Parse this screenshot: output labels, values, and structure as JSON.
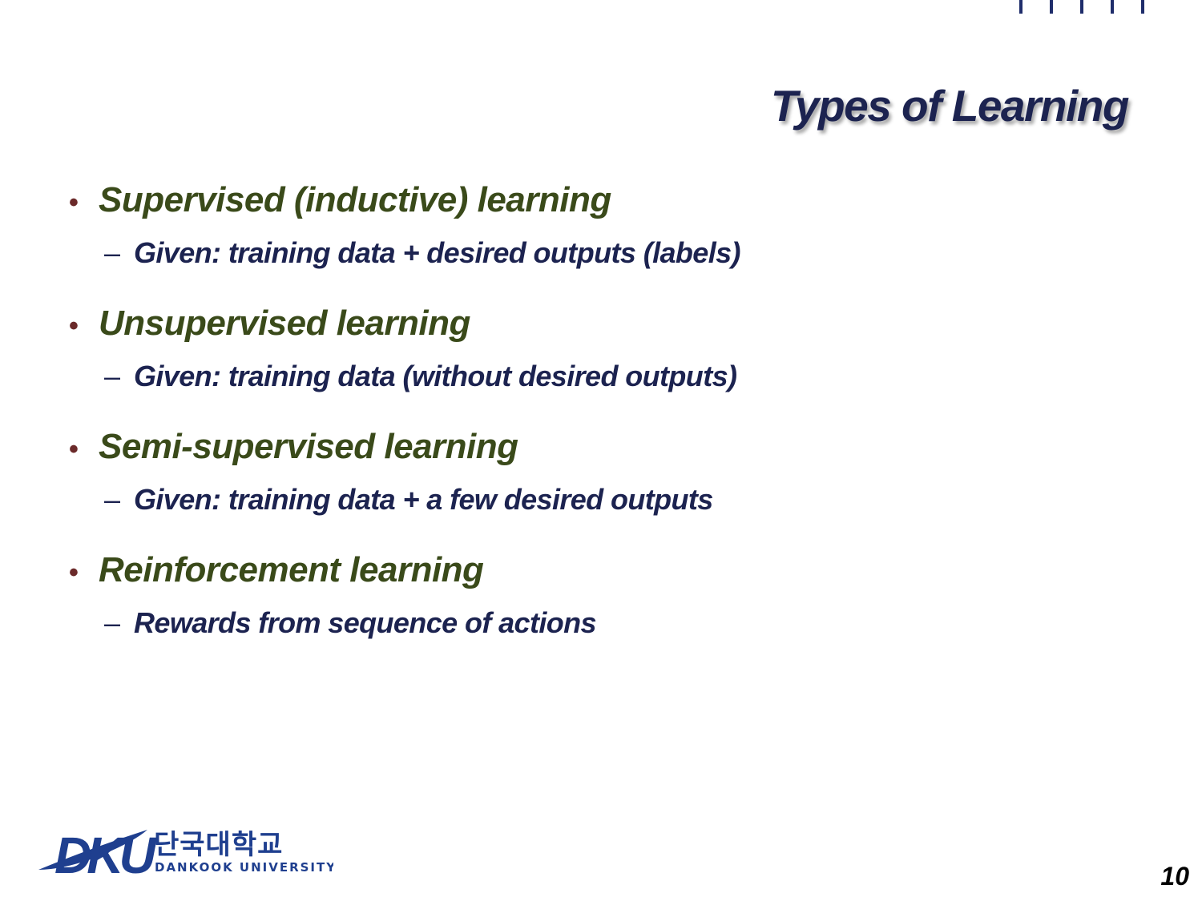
{
  "slide": {
    "title": "Types of Learning",
    "page_number": "10"
  },
  "bullets": [
    {
      "label": "Supervised (inductive) learning",
      "sub": "Given: training data + desired outputs (labels)"
    },
    {
      "label": "Unsupervised learning",
      "sub": "Given: training data (without desired outputs)"
    },
    {
      "label": "Semi-supervised learning",
      "sub": "Given: training data + a few desired outputs"
    },
    {
      "label": "Reinforcement learning",
      "sub": "Rewards from sequence of actions"
    }
  ],
  "logo": {
    "mark": "DKU",
    "name_korean": "단국대학교",
    "name_english": "DANKOOK UNIVERSITY"
  },
  "colors": {
    "title": "#1c2350",
    "bullet_text": "#3a4a1a",
    "sub_text": "#1c2350",
    "bullet_dot": "#6b2a2a",
    "logo_blue": "#1f3f8f"
  },
  "icons": {
    "bullet": "•",
    "dash": "–"
  }
}
